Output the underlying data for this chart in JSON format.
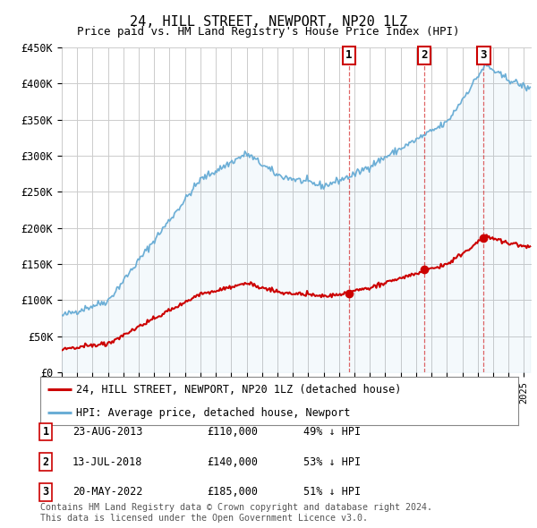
{
  "title": "24, HILL STREET, NEWPORT, NP20 1LZ",
  "subtitle": "Price paid vs. HM Land Registry's House Price Index (HPI)",
  "ylim": [
    0,
    450000
  ],
  "yticks": [
    0,
    50000,
    100000,
    150000,
    200000,
    250000,
    300000,
    350000,
    400000,
    450000
  ],
  "ytick_labels": [
    "£0",
    "£50K",
    "£100K",
    "£150K",
    "£200K",
    "£250K",
    "£300K",
    "£350K",
    "£400K",
    "£450K"
  ],
  "hpi_color": "#6baed6",
  "price_color": "#cc0000",
  "bg_color": "#ffffff",
  "grid_color": "#cccccc",
  "transactions": [
    {
      "num": 1,
      "date_label": "23-AUG-2013",
      "date_x": 2013.65,
      "price": 110000,
      "pct": "49%",
      "dir": "↓"
    },
    {
      "num": 2,
      "date_label": "13-JUL-2018",
      "date_x": 2018.53,
      "price": 140000,
      "pct": "53%",
      "dir": "↓"
    },
    {
      "num": 3,
      "date_label": "20-MAY-2022",
      "date_x": 2022.38,
      "price": 185000,
      "pct": "51%",
      "dir": "↓"
    }
  ],
  "legend_label_price": "24, HILL STREET, NEWPORT, NP20 1LZ (detached house)",
  "legend_label_hpi": "HPI: Average price, detached house, Newport",
  "footnote1": "Contains HM Land Registry data © Crown copyright and database right 2024.",
  "footnote2": "This data is licensed under the Open Government Licence v3.0.",
  "xmin": 1995.0,
  "xmax": 2025.5
}
